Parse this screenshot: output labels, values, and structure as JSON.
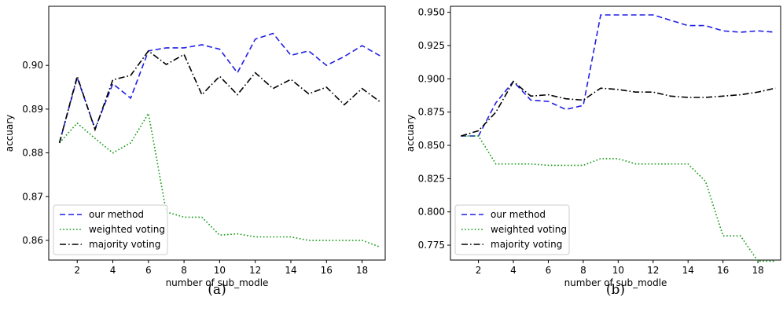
{
  "chart_data": [
    {
      "type": "line",
      "panel_label": "(a)",
      "xlabel": "number of sub_modle",
      "ylabel": "accuary",
      "xlim": [
        0.4,
        19.3
      ],
      "ylim": [
        0.8555,
        0.9135
      ],
      "xticks": [
        "2",
        "4",
        "6",
        "8",
        "10",
        "12",
        "14",
        "16",
        "18"
      ],
      "yticks": [
        "0.86",
        "0.87",
        "0.88",
        "0.89",
        "0.90"
      ],
      "legend_position": "lower-left",
      "x": [
        1,
        2,
        3,
        4,
        5,
        6,
        7,
        8,
        9,
        10,
        11,
        12,
        13,
        14,
        15,
        16,
        17,
        18,
        19
      ],
      "series": [
        {
          "name": "our method",
          "color": "#1f1fe6",
          "dash": "dashed",
          "values": [
            0.8823,
            0.8972,
            0.8855,
            0.8958,
            0.8925,
            0.9033,
            0.904,
            0.904,
            0.9047,
            0.9037,
            0.8983,
            0.906,
            0.9073,
            0.9023,
            0.9033,
            0.9,
            0.902,
            0.9045,
            0.9022
          ]
        },
        {
          "name": "weighted voting",
          "color": "#119911",
          "dash": "dotted",
          "values": [
            0.8823,
            0.8868,
            0.8833,
            0.88,
            0.8823,
            0.889,
            0.8665,
            0.8653,
            0.8653,
            0.8612,
            0.8615,
            0.8608,
            0.8608,
            0.8608,
            0.86,
            0.86,
            0.86,
            0.86,
            0.8585
          ]
        },
        {
          "name": "majority voting",
          "color": "#000000",
          "dash": "dashdot",
          "values": [
            0.8823,
            0.8975,
            0.8853,
            0.8967,
            0.8977,
            0.9033,
            0.9002,
            0.9025,
            0.8933,
            0.8975,
            0.8933,
            0.8983,
            0.8947,
            0.8968,
            0.8935,
            0.895,
            0.891,
            0.8947,
            0.8917
          ]
        }
      ]
    },
    {
      "type": "line",
      "panel_label": "(b)",
      "xlabel": "number of sub_modle",
      "ylabel": "accuary",
      "xlim": [
        0.4,
        19.3
      ],
      "ylim": [
        0.7638,
        0.9545
      ],
      "xticks": [
        "2",
        "4",
        "6",
        "8",
        "10",
        "12",
        "14",
        "16",
        "18"
      ],
      "yticks": [
        "0.775",
        "0.800",
        "0.825",
        "0.850",
        "0.875",
        "0.900",
        "0.925",
        "0.950"
      ],
      "legend_position": "lower-left",
      "x": [
        1,
        2,
        3,
        4,
        5,
        6,
        7,
        8,
        9,
        10,
        11,
        12,
        13,
        14,
        15,
        16,
        17,
        18,
        19
      ],
      "series": [
        {
          "name": "our method",
          "color": "#1f1fe6",
          "dash": "dashed",
          "values": [
            0.857,
            0.857,
            0.882,
            0.898,
            0.884,
            0.883,
            0.877,
            0.88,
            0.948,
            0.948,
            0.948,
            0.948,
            0.944,
            0.94,
            0.94,
            0.936,
            0.935,
            0.936,
            0.935
          ]
        },
        {
          "name": "weighted voting",
          "color": "#119911",
          "dash": "dotted",
          "values": [
            0.857,
            0.857,
            0.836,
            0.836,
            0.836,
            0.835,
            0.835,
            0.835,
            0.84,
            0.84,
            0.836,
            0.836,
            0.836,
            0.836,
            0.823,
            0.782,
            0.782,
            0.763,
            0.763
          ]
        },
        {
          "name": "majority voting",
          "color": "#000000",
          "dash": "dashdot",
          "values": [
            0.857,
            0.861,
            0.875,
            0.898,
            0.887,
            0.888,
            0.885,
            0.884,
            0.893,
            0.892,
            0.89,
            0.89,
            0.887,
            0.886,
            0.886,
            0.887,
            0.888,
            0.89,
            0.893
          ]
        }
      ]
    }
  ]
}
